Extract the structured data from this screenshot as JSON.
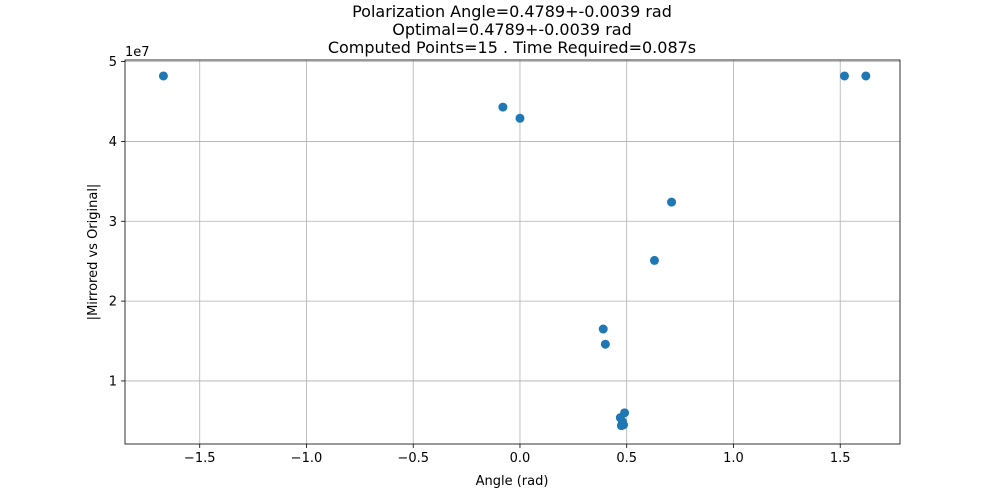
{
  "chart_data": {
    "type": "scatter",
    "title_lines": [
      "Polarization Angle=0.4789+-0.0039 rad",
      "Optimal=0.4789+-0.0039 rad",
      "Computed Points=15 . Time Required=0.087s"
    ],
    "xlabel": "Angle (rad)",
    "ylabel": "|Mirrored vs Original|",
    "y_offset_label": "1e7",
    "xlim": [
      -1.85,
      1.78
    ],
    "ylim": [
      2100000,
      50200000
    ],
    "x_ticks": [
      -1.5,
      -1.0,
      -0.5,
      0.0,
      0.5,
      1.0,
      1.5
    ],
    "x_tick_labels": [
      "−1.5",
      "−1.0",
      "−0.5",
      "0.0",
      "0.5",
      "1.0",
      "1.5"
    ],
    "y_ticks": [
      10000000,
      20000000,
      30000000,
      40000000,
      50000000
    ],
    "y_tick_labels": [
      "1",
      "2",
      "3",
      "4",
      "5"
    ],
    "grid": true,
    "marker_color": "#1f77b4",
    "points": [
      {
        "x": -1.67,
        "y": 48200000
      },
      {
        "x": -0.08,
        "y": 44300000
      },
      {
        "x": 0.0,
        "y": 42900000
      },
      {
        "x": 1.52,
        "y": 48200000
      },
      {
        "x": 1.62,
        "y": 48200000
      },
      {
        "x": 0.71,
        "y": 32400000
      },
      {
        "x": 0.63,
        "y": 25100000
      },
      {
        "x": 0.39,
        "y": 16500000
      },
      {
        "x": 0.4,
        "y": 14600000
      },
      {
        "x": 0.47,
        "y": 5400000
      },
      {
        "x": 0.49,
        "y": 6000000
      },
      {
        "x": 0.48,
        "y": 4900000
      },
      {
        "x": 0.48,
        "y": 4600000
      },
      {
        "x": 0.475,
        "y": 4400000
      },
      {
        "x": 0.485,
        "y": 4500000
      }
    ]
  }
}
